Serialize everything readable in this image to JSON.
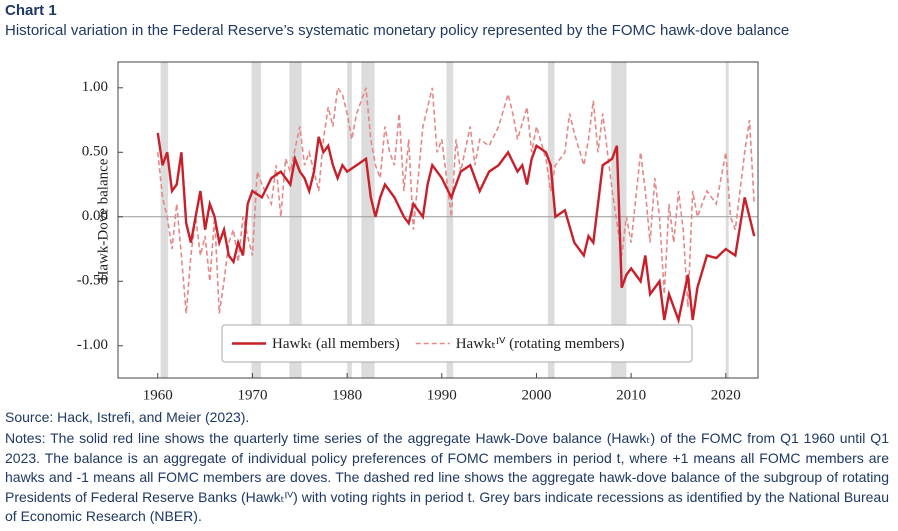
{
  "heading": "Chart 1",
  "chart_data": {
    "type": "line",
    "title": "Historical variation in the Federal Reserve’s systematic monetary policy represented by the FOMC hawk-dove balance",
    "ylabel": "Hawk-Dove balance",
    "xlim": [
      1955.8,
      2023.4
    ],
    "ylim": [
      -1.25,
      1.2
    ],
    "xticks": [
      1960,
      1970,
      1980,
      1990,
      2000,
      2010,
      2020
    ],
    "yticks": [
      {
        "value": -1,
        "label": "-1.00"
      },
      {
        "value": -0.5,
        "label": "-0.50"
      },
      {
        "value": 0,
        "label": "0.00"
      },
      {
        "value": 0.5,
        "label": "0.50"
      },
      {
        "value": 1,
        "label": "1.00"
      }
    ],
    "reference_line": 0,
    "recession_color": "#dcdcdc",
    "recessions": [
      [
        1960.3,
        1961.1
      ],
      [
        1969.9,
        1970.9
      ],
      [
        1973.9,
        1975.2
      ],
      [
        1980.0,
        1980.5
      ],
      [
        1981.5,
        1982.9
      ],
      [
        1990.5,
        1991.2
      ],
      [
        2001.2,
        2001.9
      ],
      [
        2007.9,
        2009.5
      ],
      [
        2020.0,
        2020.3
      ]
    ],
    "legend": "bottom center",
    "series": [
      {
        "name": "Hawkₜ (all members)",
        "color": "#c8202a",
        "dash": false,
        "x": [
          1960,
          1960.5,
          1961,
          1961.5,
          1962,
          1962.5,
          1963,
          1963.5,
          1964,
          1964.5,
          1965,
          1965.5,
          1966,
          1966.5,
          1967,
          1967.5,
          1968,
          1968.5,
          1969,
          1969.5,
          1970,
          1971,
          1972,
          1973,
          1974,
          1974.5,
          1975,
          1975.5,
          1976,
          1976.5,
          1977,
          1977.5,
          1978,
          1978.5,
          1979,
          1979.5,
          1980,
          1981,
          1982,
          1982.5,
          1983,
          1983.5,
          1984,
          1985,
          1986,
          1986.5,
          1987,
          1988,
          1988.5,
          1989,
          1990,
          1991,
          1991.5,
          1992,
          1993,
          1994,
          1995,
          1996,
          1997,
          1998,
          1998.5,
          1999,
          1999.5,
          2000,
          2001,
          2001.5,
          2002,
          2003,
          2004,
          2005,
          2005.5,
          2006,
          2007,
          2008,
          2008.5,
          2009,
          2009.5,
          2010,
          2011,
          2011.5,
          2012,
          2013,
          2013.5,
          2014,
          2015,
          2016,
          2016.5,
          2017,
          2018,
          2019,
          2020,
          2021,
          2022,
          2022.5,
          2023
        ],
        "values": [
          0.65,
          0.4,
          0.5,
          0.2,
          0.25,
          0.5,
          -0.05,
          -0.2,
          0.0,
          0.2,
          -0.1,
          0.1,
          0.0,
          -0.2,
          -0.1,
          -0.3,
          -0.35,
          -0.2,
          -0.3,
          0.1,
          0.2,
          0.15,
          0.3,
          0.35,
          0.25,
          0.45,
          0.35,
          0.3,
          0.2,
          0.35,
          0.62,
          0.5,
          0.55,
          0.4,
          0.3,
          0.4,
          0.35,
          0.4,
          0.45,
          0.15,
          0.0,
          0.15,
          0.25,
          0.15,
          0.0,
          -0.05,
          0.1,
          0.0,
          0.25,
          0.4,
          0.3,
          0.15,
          0.25,
          0.35,
          0.4,
          0.2,
          0.35,
          0.4,
          0.5,
          0.35,
          0.4,
          0.25,
          0.45,
          0.55,
          0.5,
          0.4,
          0.0,
          0.05,
          -0.2,
          -0.3,
          -0.15,
          -0.2,
          0.4,
          0.45,
          0.55,
          -0.55,
          -0.45,
          -0.4,
          -0.5,
          -0.3,
          -0.6,
          -0.5,
          -0.8,
          -0.6,
          -0.8,
          -0.45,
          -0.8,
          -0.55,
          -0.3,
          -0.32,
          -0.25,
          -0.3,
          0.15,
          0.0,
          -0.15
        ]
      },
      {
        "name": "Hawkₜᴵⱽ (rotating members)",
        "color": "#e48888",
        "dash": true,
        "x": [
          1960,
          1960.5,
          1961,
          1961.5,
          1962,
          1962.5,
          1963,
          1963.5,
          1964,
          1964.5,
          1965,
          1965.5,
          1966,
          1966.5,
          1967,
          1967.5,
          1968,
          1968.5,
          1969,
          1970,
          1970.5,
          1971,
          1972,
          1972.5,
          1973,
          1973.5,
          1974,
          1975,
          1975.5,
          1976,
          1977,
          1977.5,
          1978,
          1978.5,
          1979,
          1979.5,
          1980,
          1980.5,
          1981,
          1982,
          1982.5,
          1983,
          1983.5,
          1984,
          1984.5,
          1985,
          1985.5,
          1986,
          1986.5,
          1987,
          1987.5,
          1988,
          1989,
          1989.5,
          1990,
          1991,
          1991.5,
          1992,
          1993,
          1993.5,
          1994,
          1995,
          1996,
          1997,
          1997.5,
          1998,
          1999,
          1999.5,
          2000,
          2001,
          2001.5,
          2002,
          2003,
          2003.5,
          2004,
          2005,
          2005.5,
          2006,
          2006.5,
          2007,
          2008,
          2009,
          2009.5,
          2010,
          2011,
          2011.5,
          2012,
          2012.5,
          2013,
          2013.5,
          2014,
          2014.5,
          2015,
          2015.5,
          2016,
          2016.5,
          2017,
          2018,
          2019,
          2020,
          2020.5,
          2021,
          2022,
          2022.5,
          2023
        ],
        "values": [
          0.5,
          0.15,
          0.0,
          -0.25,
          0.1,
          -0.3,
          -0.75,
          -0.3,
          0.0,
          -0.3,
          -0.15,
          -0.5,
          0.0,
          -0.75,
          -0.5,
          -0.2,
          -0.1,
          -0.35,
          0.0,
          -0.3,
          0.35,
          0.25,
          0.1,
          0.4,
          0.0,
          0.45,
          0.35,
          0.7,
          0.4,
          0.5,
          0.2,
          0.6,
          0.85,
          0.7,
          1.0,
          0.95,
          0.8,
          0.6,
          0.8,
          1.0,
          0.6,
          0.4,
          0.3,
          0.7,
          0.5,
          0.4,
          0.8,
          0.2,
          0.6,
          -0.1,
          0.3,
          0.7,
          1.0,
          0.5,
          0.6,
          0.0,
          0.6,
          0.35,
          0.7,
          0.4,
          0.6,
          0.55,
          0.7,
          0.95,
          0.8,
          0.6,
          0.85,
          0.5,
          0.7,
          0.45,
          0.2,
          0.4,
          0.5,
          0.8,
          0.65,
          0.4,
          0.6,
          0.9,
          0.5,
          0.8,
          0.2,
          -0.3,
          0.0,
          -0.2,
          0.5,
          0.2,
          -0.2,
          0.3,
          0.0,
          -0.6,
          0.1,
          -0.2,
          0.2,
          -0.1,
          -0.7,
          0.2,
          0.0,
          0.2,
          0.1,
          0.5,
          0.0,
          -0.1,
          0.5,
          0.75,
          0.1
        ]
      }
    ]
  },
  "source": "Source: Hack, Istrefi, and Meier (2023).",
  "notes": "Notes: The solid red line shows the quarterly time series of the aggregate Hawk-Dove balance (Hawkₜ) of the FOMC from Q1 1960 until Q1 2023. The balance is an aggregate of individual policy preferences of FOMC members in period t, where +1 means all FOMC members are hawks and -1 means all FOMC members are doves. The dashed red line shows the aggregate hawk-dove balance of the subgroup of rotating Presidents of Federal Reserve Banks (Hawkₜᴵⱽ) with voting rights in period t. Grey bars indicate recessions as identified by the National Bureau of Economic Research (NBER)."
}
